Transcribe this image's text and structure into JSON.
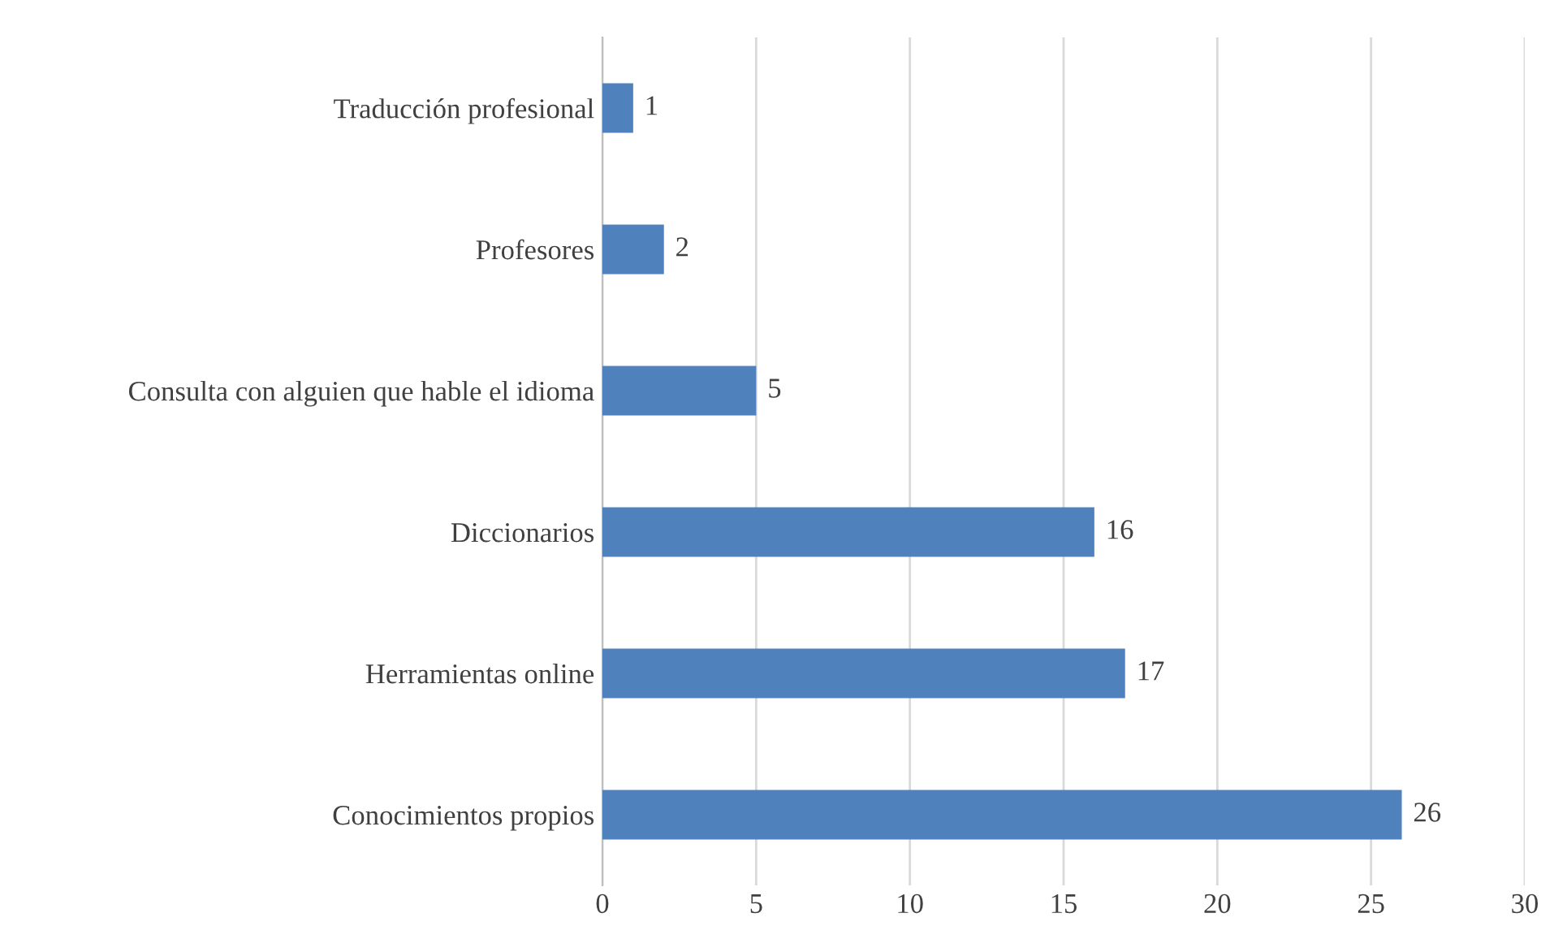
{
  "chart_data": {
    "type": "bar",
    "orientation": "horizontal",
    "categories": [
      "Traducción profesional",
      "Profesores",
      "Consulta con alguien que hable el idioma",
      "Diccionarios",
      "Herramientas online",
      "Conocimientos propios"
    ],
    "values": [
      1,
      2,
      5,
      16,
      17,
      26
    ],
    "color": "#4f81bd",
    "xlim": [
      0,
      30
    ],
    "xticks": [
      0,
      5,
      10,
      15,
      20,
      25,
      30
    ],
    "grid": "x",
    "data_labels": true
  }
}
